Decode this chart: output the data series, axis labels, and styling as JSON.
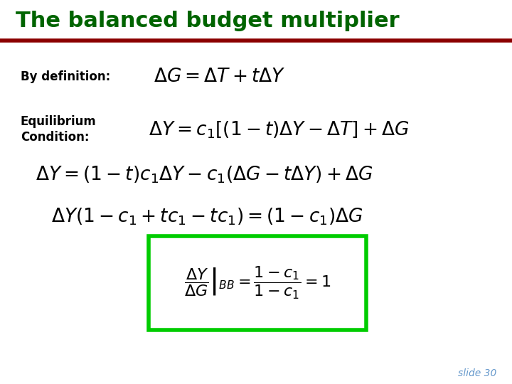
{
  "title": "The balanced budget multiplier",
  "title_color": "#006400",
  "separator_color": "#8B0000",
  "bg_color": "#ffffff",
  "label_color": "#000000",
  "formula_color": "#000000",
  "box_color": "#00cc00",
  "slide_number": "slide 30",
  "slide_number_color": "#6699cc",
  "by_definition_label": "By definition:",
  "equilibrium_label_line1": "Equilibrium",
  "equilibrium_label_line2": "Condition:"
}
